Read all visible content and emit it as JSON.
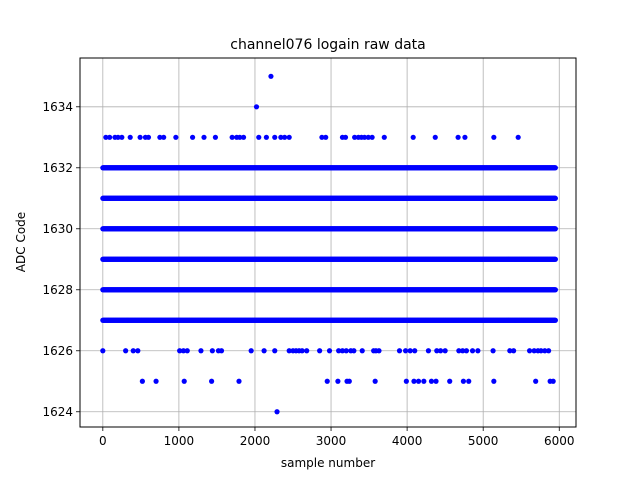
{
  "chart_data": {
    "type": "scatter",
    "title": "channel076 logain raw data",
    "xlabel": "sample number",
    "ylabel": "ADC Code",
    "xlim": [
      -300,
      6220
    ],
    "ylim": [
      1623.5,
      1635.6
    ],
    "xticks": [
      0,
      1000,
      2000,
      3000,
      4000,
      5000,
      6000
    ],
    "yticks": [
      1624,
      1626,
      1628,
      1630,
      1632,
      1634
    ],
    "grid": true,
    "marker_color": "#0000ff",
    "series": [
      {
        "points": [
          [
            0,
            1626
          ],
          [
            2290,
            1624
          ],
          [
            2210,
            1635
          ],
          [
            2020,
            1634
          ],
          [
            520,
            1625
          ],
          [
            700,
            1625
          ],
          [
            1070,
            1625
          ],
          [
            1430,
            1625
          ],
          [
            1790,
            1625
          ],
          [
            2950,
            1625
          ],
          [
            3090,
            1625
          ],
          [
            3210,
            1625
          ],
          [
            3240,
            1625
          ],
          [
            3580,
            1625
          ],
          [
            3990,
            1625
          ],
          [
            4090,
            1625
          ],
          [
            4150,
            1625
          ],
          [
            4220,
            1625
          ],
          [
            4320,
            1625
          ],
          [
            4380,
            1625
          ],
          [
            4560,
            1625
          ],
          [
            4740,
            1625
          ],
          [
            4810,
            1625
          ],
          [
            5140,
            1625
          ],
          [
            5690,
            1625
          ],
          [
            5880,
            1625
          ],
          [
            5920,
            1625
          ],
          [
            300,
            1626
          ],
          [
            400,
            1626
          ],
          [
            460,
            1626
          ],
          [
            1010,
            1626
          ],
          [
            1060,
            1626
          ],
          [
            1110,
            1626
          ],
          [
            1290,
            1626
          ],
          [
            1440,
            1626
          ],
          [
            1520,
            1626
          ],
          [
            1560,
            1626
          ],
          [
            1950,
            1626
          ],
          [
            2120,
            1626
          ],
          [
            2260,
            1626
          ],
          [
            2450,
            1626
          ],
          [
            2500,
            1626
          ],
          [
            2540,
            1626
          ],
          [
            2580,
            1626
          ],
          [
            2620,
            1626
          ],
          [
            2680,
            1626
          ],
          [
            2850,
            1626
          ],
          [
            2980,
            1626
          ],
          [
            3100,
            1626
          ],
          [
            3150,
            1626
          ],
          [
            3200,
            1626
          ],
          [
            3260,
            1626
          ],
          [
            3300,
            1626
          ],
          [
            3410,
            1626
          ],
          [
            3560,
            1626
          ],
          [
            3590,
            1626
          ],
          [
            3630,
            1626
          ],
          [
            3900,
            1626
          ],
          [
            3980,
            1626
          ],
          [
            4040,
            1626
          ],
          [
            4100,
            1626
          ],
          [
            4280,
            1626
          ],
          [
            4390,
            1626
          ],
          [
            4440,
            1626
          ],
          [
            4500,
            1626
          ],
          [
            4680,
            1626
          ],
          [
            4730,
            1626
          ],
          [
            4780,
            1626
          ],
          [
            4860,
            1626
          ],
          [
            4930,
            1626
          ],
          [
            5130,
            1626
          ],
          [
            5350,
            1626
          ],
          [
            5400,
            1626
          ],
          [
            5610,
            1626
          ],
          [
            5670,
            1626
          ],
          [
            5720,
            1626
          ],
          [
            5760,
            1626
          ],
          [
            5810,
            1626
          ],
          [
            5860,
            1626
          ],
          [
            40,
            1633
          ],
          [
            90,
            1633
          ],
          [
            160,
            1633
          ],
          [
            200,
            1633
          ],
          [
            250,
            1633
          ],
          [
            360,
            1633
          ],
          [
            490,
            1633
          ],
          [
            560,
            1633
          ],
          [
            600,
            1633
          ],
          [
            750,
            1633
          ],
          [
            800,
            1633
          ],
          [
            960,
            1633
          ],
          [
            1180,
            1633
          ],
          [
            1330,
            1633
          ],
          [
            1480,
            1633
          ],
          [
            1700,
            1633
          ],
          [
            1760,
            1633
          ],
          [
            1800,
            1633
          ],
          [
            1850,
            1633
          ],
          [
            2050,
            1633
          ],
          [
            2150,
            1633
          ],
          [
            2260,
            1633
          ],
          [
            2340,
            1633
          ],
          [
            2390,
            1633
          ],
          [
            2450,
            1633
          ],
          [
            2880,
            1633
          ],
          [
            2930,
            1633
          ],
          [
            3150,
            1633
          ],
          [
            3190,
            1633
          ],
          [
            3310,
            1633
          ],
          [
            3360,
            1633
          ],
          [
            3400,
            1633
          ],
          [
            3440,
            1633
          ],
          [
            3490,
            1633
          ],
          [
            3540,
            1633
          ],
          [
            3700,
            1633
          ],
          [
            4080,
            1633
          ],
          [
            4370,
            1633
          ],
          [
            4670,
            1633
          ],
          [
            4760,
            1633
          ],
          [
            5140,
            1633
          ],
          [
            5460,
            1633
          ]
        ],
        "bands": [
          {
            "y": 1627,
            "x_start": 0,
            "x_end": 5950
          },
          {
            "y": 1628,
            "x_start": 0,
            "x_end": 5950
          },
          {
            "y": 1629,
            "x_start": 0,
            "x_end": 5950
          },
          {
            "y": 1630,
            "x_start": 0,
            "x_end": 5950
          },
          {
            "y": 1631,
            "x_start": 0,
            "x_end": 5950
          },
          {
            "y": 1632,
            "x_start": 0,
            "x_end": 5950
          }
        ]
      }
    ]
  }
}
